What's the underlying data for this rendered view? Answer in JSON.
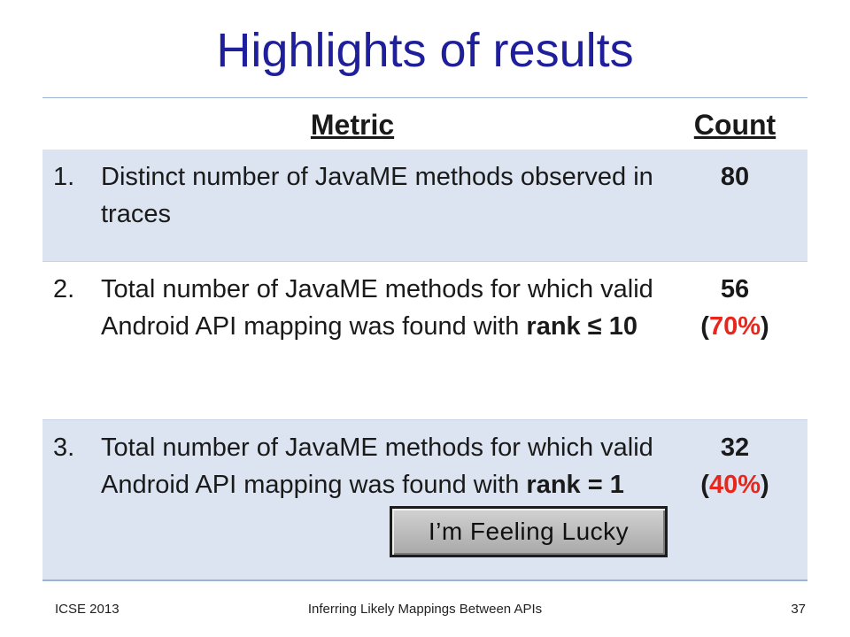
{
  "title": "Highlights of results",
  "table": {
    "headers": {
      "metric": "Metric",
      "count": "Count"
    },
    "rows": [
      {
        "num": "1.",
        "text_parts": [
          "Distinct number of JavaME methods observed in traces"
        ],
        "count": "80",
        "pct": ""
      },
      {
        "num": "2.",
        "text_plain": "Total number of JavaME methods for which valid Android API mapping was found with ",
        "text_bold": "rank ≤ 10",
        "count": "56",
        "pct_open": "(",
        "pct": "70%",
        "pct_close": ")"
      },
      {
        "num": "3.",
        "text_plain": "Total number of JavaME methods for which valid Android API mapping was found with ",
        "text_bold": "rank = 1",
        "count": "32",
        "pct_open": "(",
        "pct": "40%",
        "pct_close": ")"
      }
    ]
  },
  "lucky_button": "I’m Feeling Lucky",
  "footer": {
    "left": "ICSE 2013",
    "center": "Inferring Likely Mappings Between APIs",
    "page": "37"
  },
  "colors": {
    "title": "#1f1f9c",
    "percent": "#e8261c",
    "row_shade": "#dbe4f0"
  }
}
